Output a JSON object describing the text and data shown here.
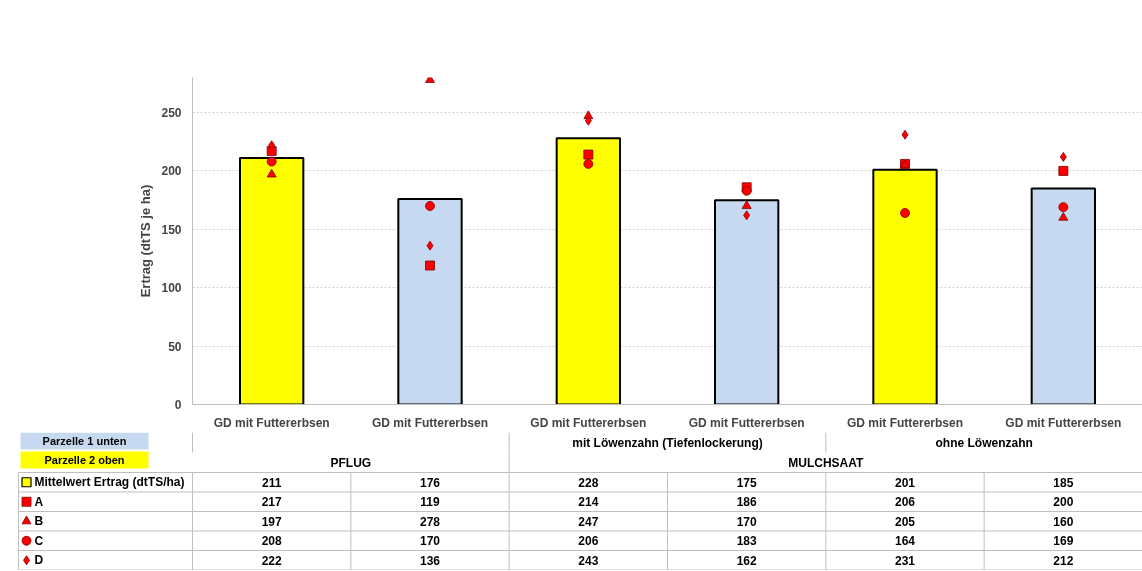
{
  "chart_data": {
    "type": "bar",
    "ylabel": "Ertrag (dtTS je ha)",
    "categories": [
      "GD mit Futtererbsen",
      "GD mit Futtererbsen",
      "GD mit Futtererbsen",
      "GD mit Futtererbsen",
      "GD mit Futtererbsen",
      "GD mit Futtererbsen"
    ],
    "series": [
      {
        "name": "Mittelwert Ertrag (dtTS/ha)",
        "marker": "square",
        "colors": [
          "#ffff00",
          "#c6d9f0",
          "#ffff00",
          "#c6d9f0",
          "#ffff00",
          "#c6d9f0"
        ],
        "values": [
          211,
          176,
          228,
          175,
          201,
          185
        ],
        "value_labels": [
          "211",
          "176",
          "228",
          "175",
          "201",
          "185"
        ]
      },
      {
        "name": "A",
        "type": "scatter",
        "marker": "square",
        "color": "#ff0000",
        "values": [
          217,
          119,
          214,
          186,
          206,
          200
        ],
        "value_labels": [
          "217",
          "119",
          "214",
          "186",
          "206",
          "200"
        ]
      },
      {
        "name": "B",
        "type": "scatter",
        "marker": "triangle",
        "color": "#ff0000",
        "values": [
          197,
          278,
          247,
          170,
          205,
          160
        ],
        "value_labels": [
          "197",
          "278",
          "247",
          "170",
          "205",
          "160"
        ]
      },
      {
        "name": "C",
        "type": "scatter",
        "marker": "circle",
        "color": "#ff0000",
        "values": [
          208,
          170,
          206,
          183,
          164,
          169
        ],
        "value_labels": [
          "208",
          "170",
          "206",
          "183",
          "164",
          "169"
        ]
      },
      {
        "name": "D",
        "type": "scatter",
        "marker": "diamond",
        "color": "#ff0000",
        "values": [
          222,
          136,
          243,
          162,
          231,
          212
        ],
        "value_labels": [
          "222",
          "136",
          "243",
          "162",
          "231",
          "212"
        ]
      }
    ],
    "ylim": [
      0,
      280
    ],
    "yticks": [
      0,
      50,
      100,
      150,
      200,
      250
    ],
    "grid": "y",
    "legend": "bottom left",
    "annotations": [
      "Parzelle 1 unten",
      "Parzelle 2 oben",
      "mit Löwenzahn (Tiefenlockerung)",
      "ohne Löwenzahn",
      "PFLUG",
      "MULCHSAAT"
    ]
  }
}
